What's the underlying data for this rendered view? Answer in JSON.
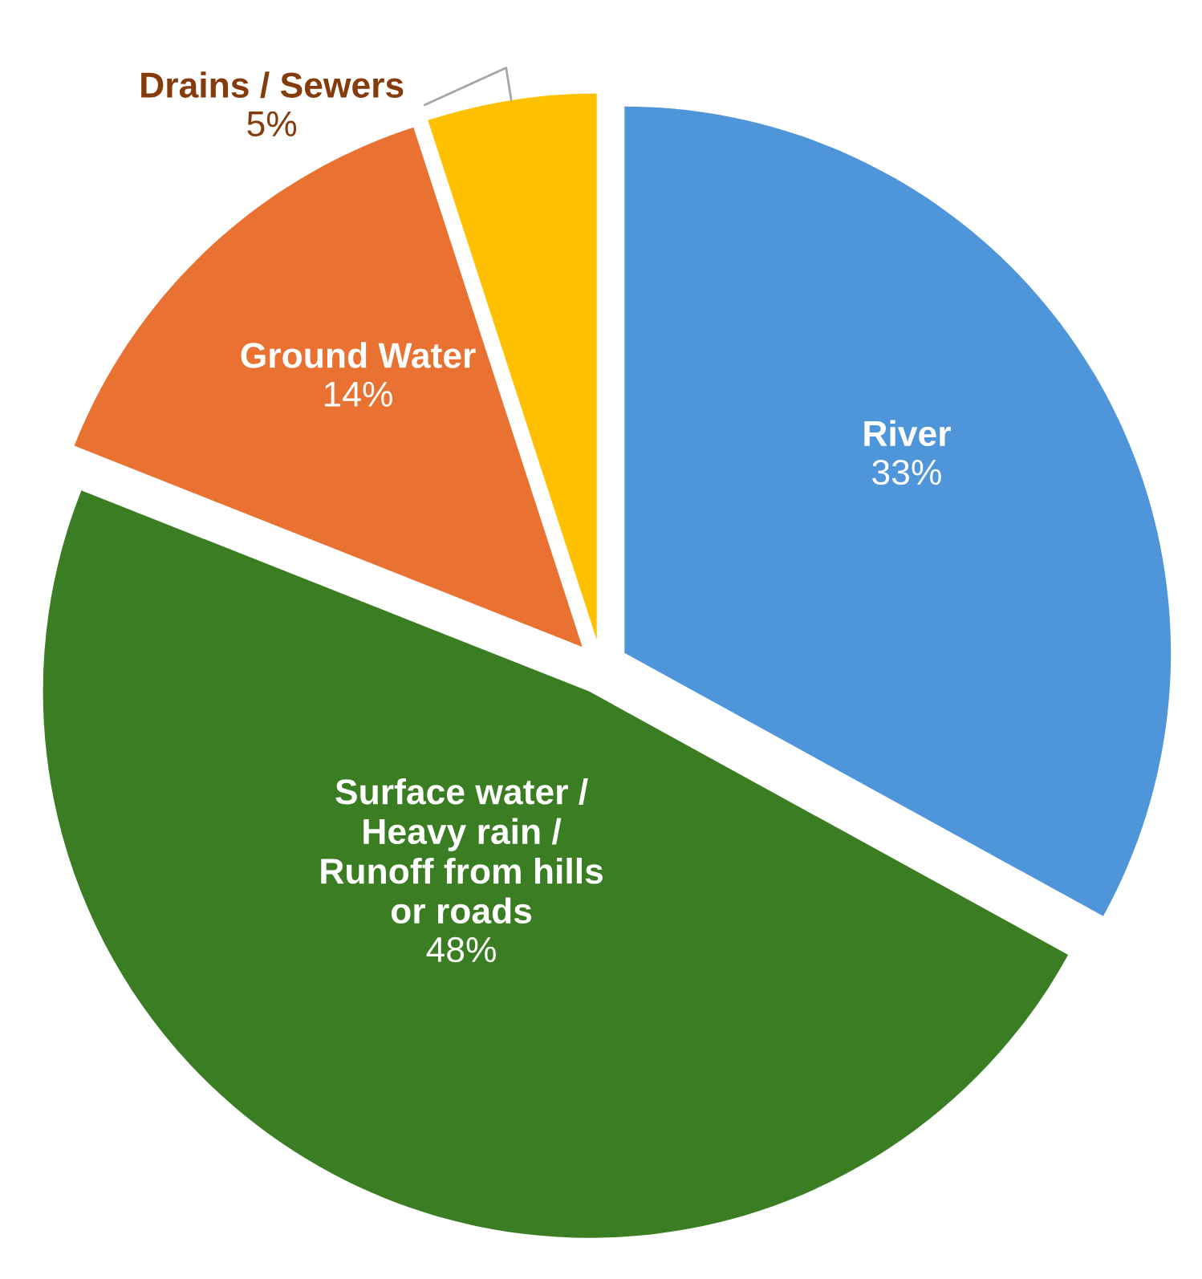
{
  "chart_data": {
    "type": "pie",
    "categories": [
      "River",
      "Surface water /\nHeavy rain /\nRunoff from hills\nor roads",
      "Ground Water",
      "Drains / Sewers"
    ],
    "values": [
      33,
      48,
      14,
      5
    ],
    "value_labels": [
      "33%",
      "48%",
      "14%",
      "5%"
    ],
    "colors": [
      "#4e95d9",
      "#3a7d22",
      "#e97132",
      "#ffc000"
    ]
  }
}
